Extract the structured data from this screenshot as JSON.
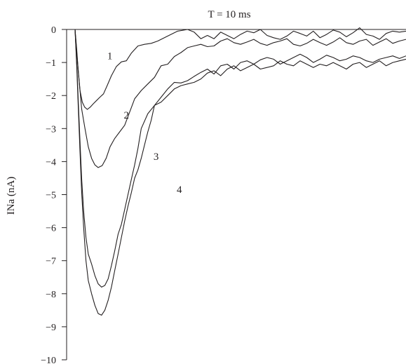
{
  "chart_data": {
    "type": "line",
    "title": "T = 10 ms",
    "ylabel": "INa (nA)",
    "xlabel": "",
    "ylim": [
      -10,
      0
    ],
    "xlim": [
      0,
      100
    ],
    "yticks": [
      0,
      -1,
      -2,
      -3,
      -4,
      -5,
      -6,
      -7,
      -8,
      -9,
      -10
    ],
    "ytick_labels": [
      "0",
      "−1",
      "−2",
      "−3",
      "−4",
      "−5",
      "−6",
      "−7",
      "−8",
      "−9",
      "−10"
    ],
    "grid": false,
    "series": [
      {
        "name": "1",
        "x": [
          0,
          0.5,
          1,
          1.5,
          2.2,
          2.9,
          3.7,
          4.6,
          5.5,
          6.5,
          7.5,
          8.6,
          9.7,
          11,
          12.5,
          14,
          15.5,
          17,
          19,
          21,
          23,
          25,
          28,
          31,
          34,
          36,
          38,
          40,
          42,
          44,
          46,
          48,
          50,
          52,
          54,
          56,
          58,
          60,
          62,
          64,
          66,
          68,
          70,
          72,
          74,
          76,
          78,
          80,
          82,
          84,
          86,
          88,
          90,
          92,
          94,
          96,
          98,
          100
        ],
        "y": [
          0,
          -0.6,
          -1.3,
          -1.85,
          -2.2,
          -2.35,
          -2.42,
          -2.35,
          -2.25,
          -2.15,
          -2.05,
          -1.95,
          -1.7,
          -1.4,
          -1.12,
          -0.98,
          -0.95,
          -0.72,
          -0.5,
          -0.45,
          -0.42,
          -0.35,
          -0.2,
          -0.05,
          0.0,
          -0.08,
          -0.28,
          -0.18,
          -0.28,
          -0.08,
          -0.18,
          -0.28,
          -0.15,
          -0.05,
          -0.1,
          -0.0,
          -0.18,
          -0.25,
          -0.3,
          -0.2,
          -0.05,
          -0.12,
          -0.2,
          -0.05,
          -0.25,
          -0.15,
          -0.02,
          -0.08,
          -0.22,
          -0.1,
          0.05,
          -0.15,
          -0.2,
          -0.3,
          -0.12,
          -0.05,
          -0.08,
          -0.05
        ]
      },
      {
        "name": "2",
        "x": [
          0,
          0.6,
          1.3,
          2,
          3,
          4,
          5,
          6,
          7,
          8.2,
          9.4,
          10.6,
          12,
          13.5,
          15,
          16.5,
          18,
          20,
          22,
          24,
          26,
          28,
          30,
          32,
          34,
          36,
          38,
          40,
          42,
          44,
          46,
          48,
          50,
          52,
          54,
          56,
          58,
          60,
          62,
          64,
          66,
          68,
          70,
          72,
          74,
          76,
          78,
          80,
          82,
          84,
          86,
          88,
          90,
          92,
          94,
          96,
          98,
          100
        ],
        "y": [
          0,
          -0.8,
          -1.6,
          -2.4,
          -3.0,
          -3.55,
          -3.9,
          -4.1,
          -4.18,
          -4.12,
          -3.9,
          -3.55,
          -3.3,
          -3.1,
          -2.9,
          -2.5,
          -2.1,
          -1.85,
          -1.65,
          -1.45,
          -1.1,
          -1.05,
          -0.82,
          -0.7,
          -0.55,
          -0.5,
          -0.45,
          -0.52,
          -0.5,
          -0.35,
          -0.28,
          -0.4,
          -0.45,
          -0.38,
          -0.3,
          -0.42,
          -0.48,
          -0.4,
          -0.35,
          -0.28,
          -0.45,
          -0.5,
          -0.42,
          -0.3,
          -0.4,
          -0.48,
          -0.38,
          -0.25,
          -0.4,
          -0.45,
          -0.35,
          -0.3,
          -0.48,
          -0.38,
          -0.28,
          -0.42,
          -0.35,
          -0.3
        ]
      },
      {
        "name": "3",
        "x": [
          0,
          0.5,
          1,
          1.5,
          2,
          2.6,
          3.3,
          4,
          5,
          6,
          7,
          8,
          9,
          10,
          11,
          12,
          13,
          14,
          15,
          16,
          17,
          18,
          19,
          20,
          22,
          24,
          26,
          28,
          30,
          32,
          34,
          36,
          38,
          40,
          42,
          44,
          46,
          48,
          50,
          52,
          54,
          56,
          58,
          60,
          62,
          64,
          66,
          68,
          70,
          72,
          74,
          76,
          78,
          80,
          82,
          84,
          86,
          88,
          90,
          92,
          94,
          96,
          98,
          100
        ],
        "y": [
          0,
          -1.0,
          -2.2,
          -3.4,
          -4.5,
          -5.5,
          -6.3,
          -6.8,
          -7.1,
          -7.45,
          -7.7,
          -7.8,
          -7.75,
          -7.55,
          -7.15,
          -6.7,
          -6.2,
          -5.9,
          -5.45,
          -5.0,
          -4.55,
          -4.1,
          -3.6,
          -3.0,
          -2.55,
          -2.3,
          -2.05,
          -1.8,
          -1.6,
          -1.62,
          -1.55,
          -1.42,
          -1.3,
          -1.2,
          -1.35,
          -1.1,
          -1.05,
          -1.2,
          -1.0,
          -0.95,
          -1.05,
          -0.92,
          -0.85,
          -0.9,
          -1.05,
          -0.95,
          -0.85,
          -0.75,
          -0.85,
          -1.0,
          -0.9,
          -0.78,
          -0.85,
          -0.95,
          -0.9,
          -0.8,
          -0.85,
          -0.95,
          -1.0,
          -0.9,
          -0.85,
          -0.8,
          -0.88,
          -0.8
        ]
      },
      {
        "name": "4",
        "x": [
          0,
          0.5,
          1,
          1.5,
          2,
          2.6,
          3.3,
          4,
          5,
          6,
          7,
          8,
          9,
          10,
          11,
          12,
          13,
          14,
          15,
          16,
          17,
          18,
          19,
          20,
          21,
          22,
          23,
          24,
          26,
          28,
          30,
          32,
          34,
          36,
          38,
          40,
          42,
          44,
          46,
          48,
          50,
          52,
          54,
          56,
          58,
          60,
          62,
          64,
          66,
          68,
          70,
          72,
          74,
          76,
          78,
          80,
          82,
          84,
          86,
          88,
          90,
          92,
          94,
          96,
          98,
          100
        ],
        "y": [
          0,
          -1.1,
          -2.4,
          -3.7,
          -4.9,
          -6.0,
          -7.0,
          -7.6,
          -8.0,
          -8.35,
          -8.6,
          -8.65,
          -8.5,
          -8.2,
          -7.8,
          -7.3,
          -6.8,
          -6.3,
          -5.8,
          -5.35,
          -4.95,
          -4.5,
          -4.25,
          -3.9,
          -3.5,
          -3.1,
          -2.75,
          -2.3,
          -2.2,
          -2.0,
          -1.8,
          -1.7,
          -1.65,
          -1.6,
          -1.5,
          -1.32,
          -1.25,
          -1.4,
          -1.2,
          -1.1,
          -1.25,
          -1.15,
          -1.05,
          -1.2,
          -1.15,
          -1.1,
          -0.95,
          -1.05,
          -1.1,
          -0.95,
          -1.05,
          -1.15,
          -1.05,
          -1.1,
          -1.0,
          -1.1,
          -1.2,
          -1.05,
          -1.0,
          -1.15,
          -1.05,
          -0.95,
          -1.1,
          -1.0,
          -0.95,
          -0.9
        ]
      }
    ]
  }
}
